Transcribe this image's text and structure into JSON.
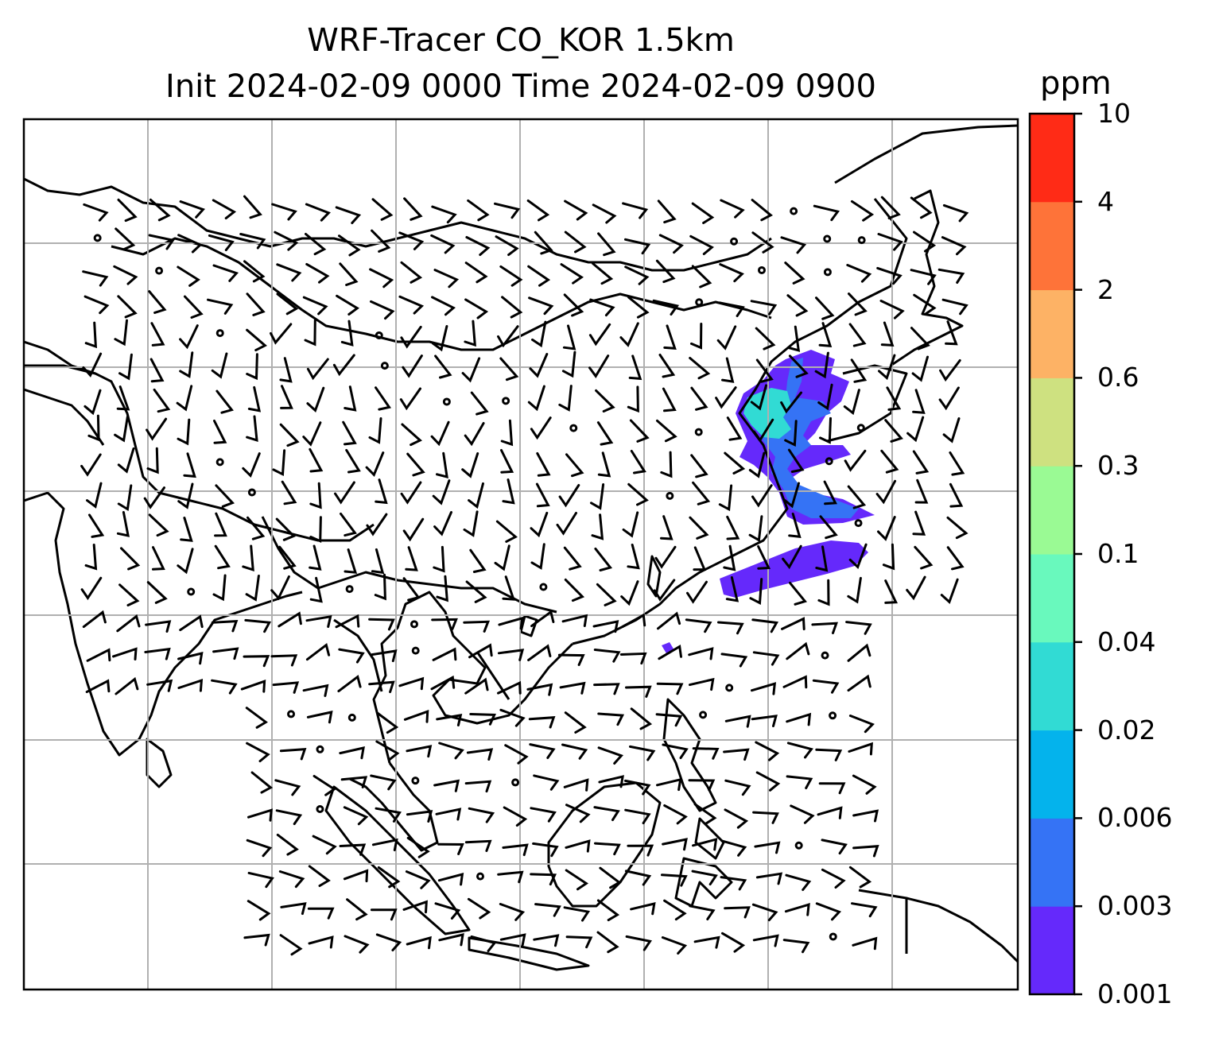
{
  "figure": {
    "title_line1": "WRF-Tracer CO_KOR 1.5km",
    "title_line2": "Init 2024-02-09 0000 Time 2024-02-09 0900"
  },
  "colorbar": {
    "unit": "ppm",
    "ticks": [
      "0.001",
      "0.003",
      "0.006",
      "0.02",
      "0.04",
      "0.1",
      "0.3",
      "0.6",
      "2",
      "4",
      "10"
    ],
    "colors": [
      "#6529fb",
      "#3573f5",
      "#04b3ec",
      "#31dbd4",
      "#69f9bd",
      "#9afa94",
      "#cee180",
      "#fdb265",
      "#fe7339",
      "#ff2b16"
    ]
  },
  "map": {
    "grid": true,
    "wind_barbs": true,
    "plume_colors": [
      "#6529fb",
      "#3573f5",
      "#31dbd4"
    ]
  }
}
